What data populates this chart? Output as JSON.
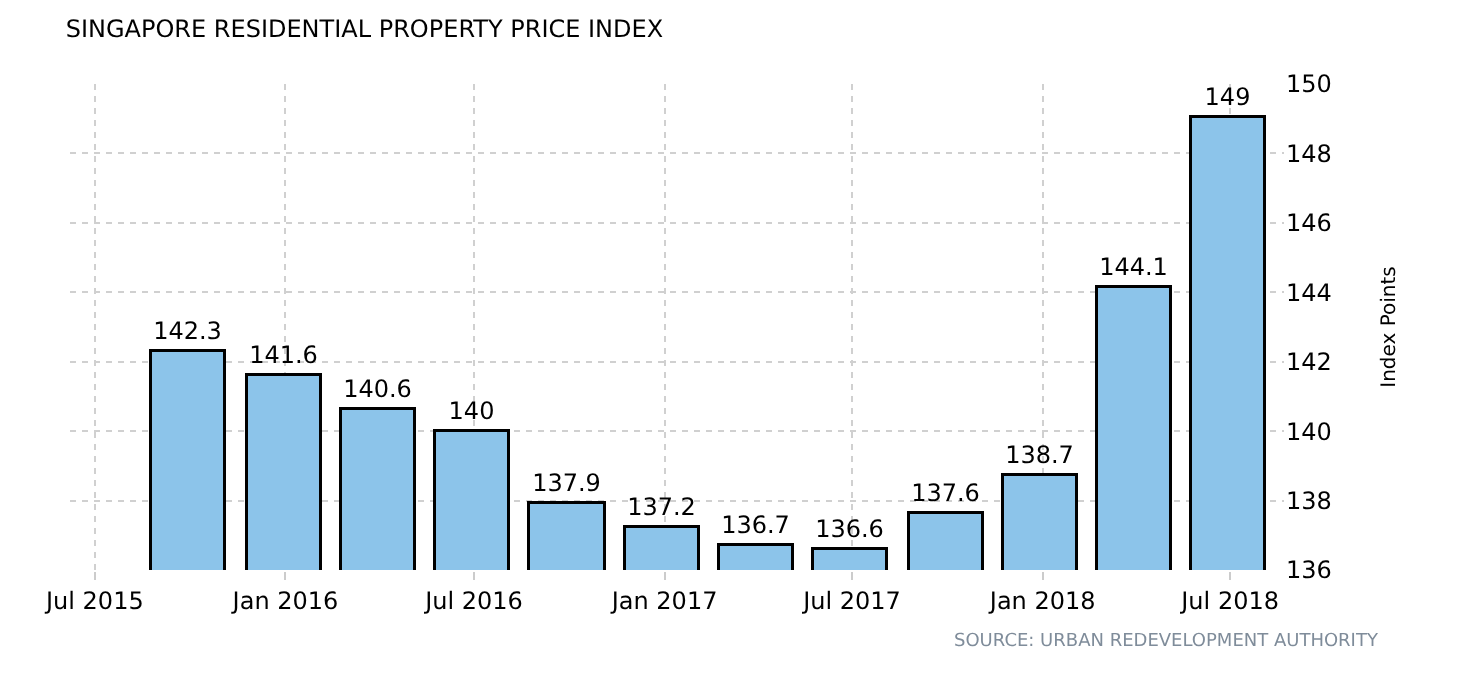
{
  "chart_data": {
    "type": "bar",
    "title": "SINGAPORE RESIDENTIAL PROPERTY PRICE INDEX",
    "ylabel": "Index Points",
    "x": [
      "2015-09-30",
      "2015-12-31",
      "2016-03-31",
      "2016-06-30",
      "2016-09-30",
      "2016-12-31",
      "2017-03-31",
      "2017-06-30",
      "2017-09-30",
      "2017-12-31",
      "2018-03-31",
      "2018-06-30"
    ],
    "values": [
      142.3,
      141.6,
      140.6,
      140,
      137.9,
      137.2,
      136.7,
      136.6,
      137.6,
      138.7,
      144.1,
      149
    ],
    "color": "#8cc4ea",
    "data_labels": true,
    "xlim": [
      "2015-06-07",
      "2018-08-22"
    ],
    "xticks": [
      {
        "value": "2015-07-01",
        "label": "Jul 2015"
      },
      {
        "value": "2016-01-01",
        "label": "Jan 2016"
      },
      {
        "value": "2016-07-01",
        "label": "Jul 2016"
      },
      {
        "value": "2017-01-01",
        "label": "Jan 2017"
      },
      {
        "value": "2017-07-01",
        "label": "Jul 2017"
      },
      {
        "value": "2018-01-01",
        "label": "Jan 2018"
      },
      {
        "value": "2018-07-01",
        "label": "Jul 2018"
      }
    ],
    "ylim": [
      136,
      150
    ],
    "yticks": [
      136,
      138,
      140,
      142,
      144,
      146,
      148,
      150
    ],
    "grid": true,
    "annotations": [
      "SOURCE: URBAN REDEVELOPMENT AUTHORITY"
    ]
  }
}
